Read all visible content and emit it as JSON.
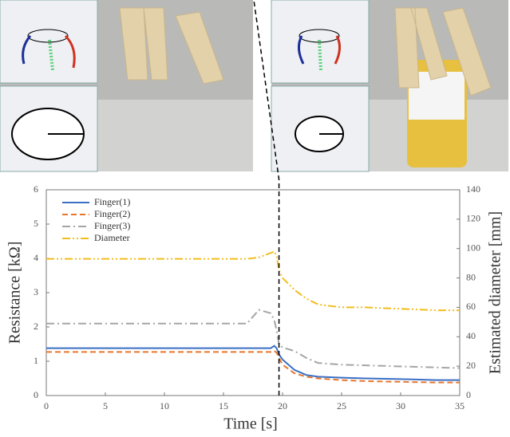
{
  "chart_data": {
    "type": "line",
    "xlabel": "Time [s]",
    "ylabel": "Resistance [kΩ]",
    "y2label": "Estimated diameter [mm]",
    "x": [
      0,
      5,
      10,
      15,
      17,
      18,
      19,
      19.3,
      19.5,
      19.7,
      20,
      21,
      22,
      23,
      25,
      27,
      30,
      33,
      35
    ],
    "series": [
      {
        "name": "Finger(1)",
        "color": "#3a6fc4",
        "dash": "solid",
        "values": [
          1.38,
          1.38,
          1.38,
          1.38,
          1.38,
          1.38,
          1.38,
          1.45,
          1.38,
          1.2,
          1.05,
          0.75,
          0.6,
          0.55,
          0.52,
          0.5,
          0.48,
          0.45,
          0.45
        ]
      },
      {
        "name": "Finger(2)",
        "color": "#e8772e",
        "dash": "dash",
        "values": [
          1.27,
          1.27,
          1.27,
          1.27,
          1.27,
          1.27,
          1.27,
          1.3,
          1.25,
          1.1,
          0.9,
          0.65,
          0.55,
          0.5,
          0.45,
          0.42,
          0.4,
          0.38,
          0.38
        ]
      },
      {
        "name": "Finger(3)",
        "color": "#a5a5a5",
        "dash": "dashdot",
        "values": [
          2.1,
          2.1,
          2.1,
          2.1,
          2.1,
          2.5,
          2.4,
          2.2,
          1.9,
          1.5,
          1.4,
          1.3,
          1.1,
          0.95,
          0.9,
          0.88,
          0.85,
          0.82,
          0.8
        ]
      },
      {
        "name": "Diameter",
        "color": "#f2bd1d",
        "dash": "dashdotdot",
        "axis": "y2",
        "values": [
          93,
          93,
          93,
          93,
          93,
          94,
          97,
          98,
          95,
          85,
          80,
          72,
          66,
          62,
          60,
          60,
          59,
          58,
          58
        ]
      }
    ],
    "vline_x": 19.7,
    "xlim": [
      0,
      35
    ],
    "xticks": [
      0,
      5,
      10,
      15,
      20,
      25,
      30,
      35
    ],
    "ylim": [
      0,
      6
    ],
    "yticks": [
      0,
      1,
      2,
      3,
      4,
      5,
      6
    ],
    "y2lim": [
      0,
      140
    ],
    "y2ticks": [
      0,
      20,
      40,
      60,
      80,
      100,
      120,
      140
    ],
    "legend": "upper-left",
    "grid": false
  }
}
